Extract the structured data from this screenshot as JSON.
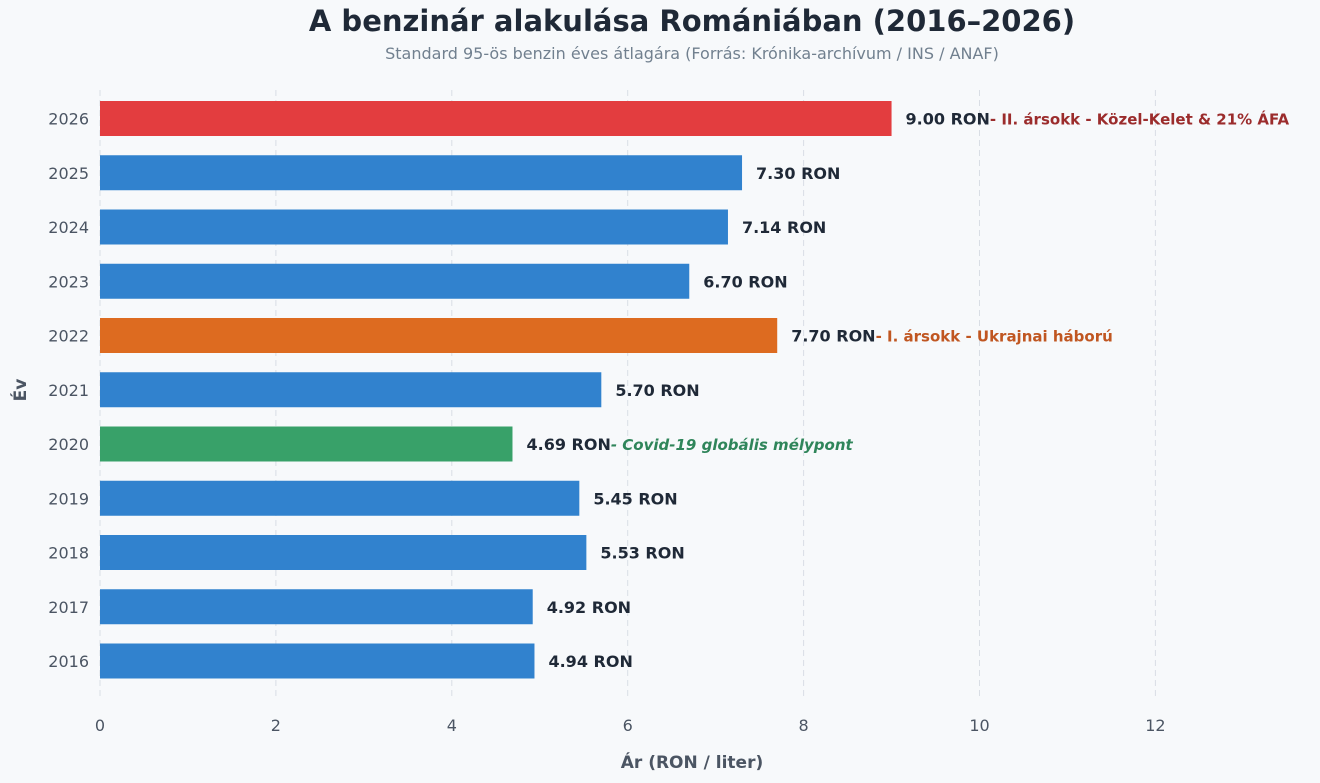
{
  "chart_data": {
    "type": "bar",
    "orientation": "horizontal",
    "title": "A benzinár alakulása Romániában (2016–2026)",
    "subtitle": "Standard 95-ös benzin éves átlagára (Forrás: Krónika-archívum / INS / ANAF)",
    "xlabel": "Ár (RON / liter)",
    "ylabel": "Év",
    "xlim": [
      0,
      13
    ],
    "xticks": [
      0,
      2,
      4,
      6,
      8,
      10,
      12
    ],
    "grid": "vertical dashed",
    "categories": [
      "2026",
      "2025",
      "2024",
      "2023",
      "2022",
      "2021",
      "2020",
      "2019",
      "2018",
      "2017",
      "2016"
    ],
    "values": [
      9.0,
      7.3,
      7.14,
      6.7,
      7.7,
      5.7,
      4.69,
      5.45,
      5.53,
      4.92,
      4.94
    ],
    "value_labels": [
      "9.00 RON",
      "7.30 RON",
      "7.14 RON",
      "6.70 RON",
      "7.70 RON",
      "5.70 RON",
      "4.69 RON",
      "5.45 RON",
      "5.53 RON",
      "4.92 RON",
      "4.94 RON"
    ],
    "bar_colors": [
      "#e33d3f",
      "#3182ce",
      "#3182ce",
      "#3182ce",
      "#dd6b20",
      "#3182ce",
      "#38a169",
      "#3182ce",
      "#3182ce",
      "#3182ce",
      "#3182ce"
    ],
    "annotations": [
      {
        "category": "2026",
        "text": "- II. ársokk - Közel-Kelet & 21% ÁFA",
        "color": "#9b2c2c",
        "italic": false
      },
      {
        "category": "2022",
        "text": "- I. ársokk - Ukrajnai háború",
        "color": "#c05621",
        "italic": false
      },
      {
        "category": "2020",
        "text": "- Covid-19 globális mélypont",
        "color": "#2f855a",
        "italic": true
      }
    ]
  }
}
